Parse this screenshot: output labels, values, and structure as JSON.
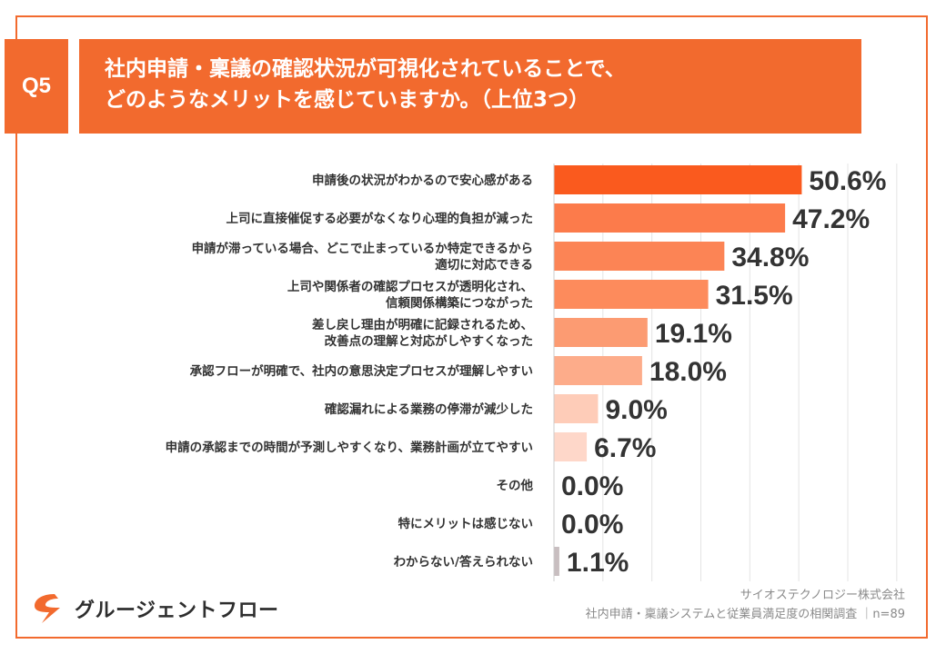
{
  "question": {
    "badge": "Q5",
    "title_lines": [
      "社内申請・稟議の確認状況が可視化されていることで、",
      "どのようなメリットを感じていますか。（上位3つ）"
    ]
  },
  "colors": {
    "accent": "#f26a2e",
    "bars": [
      "#fa5a1e",
      "#fc7b4b",
      "#fc8455",
      "#fd8b5c",
      "#fc9b72",
      "#fdac8a",
      "#feccb8",
      "#fed7c9",
      "#fbe1d6",
      "#fbe1d6",
      "#c8bec0"
    ]
  },
  "chart_data": {
    "type": "bar",
    "orientation": "horizontal",
    "title": "",
    "xlabel": "",
    "ylabel": "",
    "xlim": [
      0,
      73
    ],
    "grid": true,
    "categories": [
      [
        "申請後の状況がわかるので安心感がある"
      ],
      [
        "上司に直接催促する必要がなくなり心理的負担が減った"
      ],
      [
        "申請が滞っている場合、どこで止まっているか特定できるから",
        "適切に対応できる"
      ],
      [
        "上司や関係者の確認プロセスが透明化され、",
        "信頼関係構築につながった"
      ],
      [
        "差し戻し理由が明確に記録されるため、",
        "改善点の理解と対応がしやすくなった"
      ],
      [
        "承認フローが明確で、社内の意思決定プロセスが理解しやすい"
      ],
      [
        "確認漏れによる業務の停滞が減少した"
      ],
      [
        "申請の承認までの時間が予測しやすくなり、業務計画が立てやすい"
      ],
      [
        "その他"
      ],
      [
        "特にメリットは感じない"
      ],
      [
        "わからない/答えられない"
      ]
    ],
    "values": [
      50.6,
      47.2,
      34.8,
      31.5,
      19.1,
      18.0,
      9.0,
      6.7,
      0.0,
      0.0,
      1.1
    ],
    "value_labels": [
      "50.6%",
      "47.2%",
      "34.8%",
      "31.5%",
      "19.1%",
      "18.0%",
      "9.0%",
      "6.7%",
      "0.0%",
      "0.0%",
      "1.1%"
    ]
  },
  "logo": {
    "name": "グルージェントフロー"
  },
  "credit": {
    "line1": "サイオステクノロジー株式会社",
    "line2": "社内申請・稟議システムと従業員満足度の相関調査 ｜n=89"
  }
}
